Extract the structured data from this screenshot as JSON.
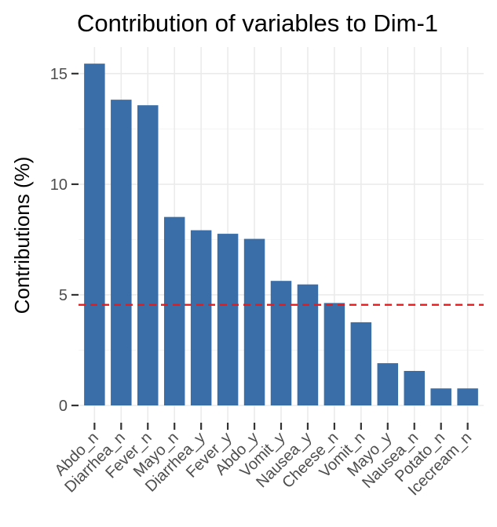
{
  "chart_data": {
    "type": "bar",
    "title": "Contribution of variables to Dim-1",
    "xlabel": "",
    "ylabel": "Contributions (%)",
    "categories": [
      "Abdo_n",
      "Diarrhea_n",
      "Fever_n",
      "Mayo_n",
      "Diarrhea_y",
      "Fever_y",
      "Abdo_y",
      "Vomit_y",
      "Nausea_y",
      "Cheese_n",
      "Vomit_n",
      "Mayo_y",
      "Nausea_n",
      "Potato_n",
      "Icecream_n"
    ],
    "values": [
      15.45,
      13.82,
      13.57,
      8.52,
      7.92,
      7.76,
      7.53,
      5.63,
      5.47,
      4.63,
      3.76,
      1.91,
      1.56,
      0.77,
      0.77
    ],
    "ylim": [
      -0.78,
      16.2
    ],
    "yticks": [
      0,
      5,
      10,
      15
    ],
    "reference_line": 4.55,
    "grid": true,
    "colors": {
      "bar": "#3a6ea8",
      "reference_line": "#e41a1c",
      "grid": "#ebebeb"
    }
  }
}
